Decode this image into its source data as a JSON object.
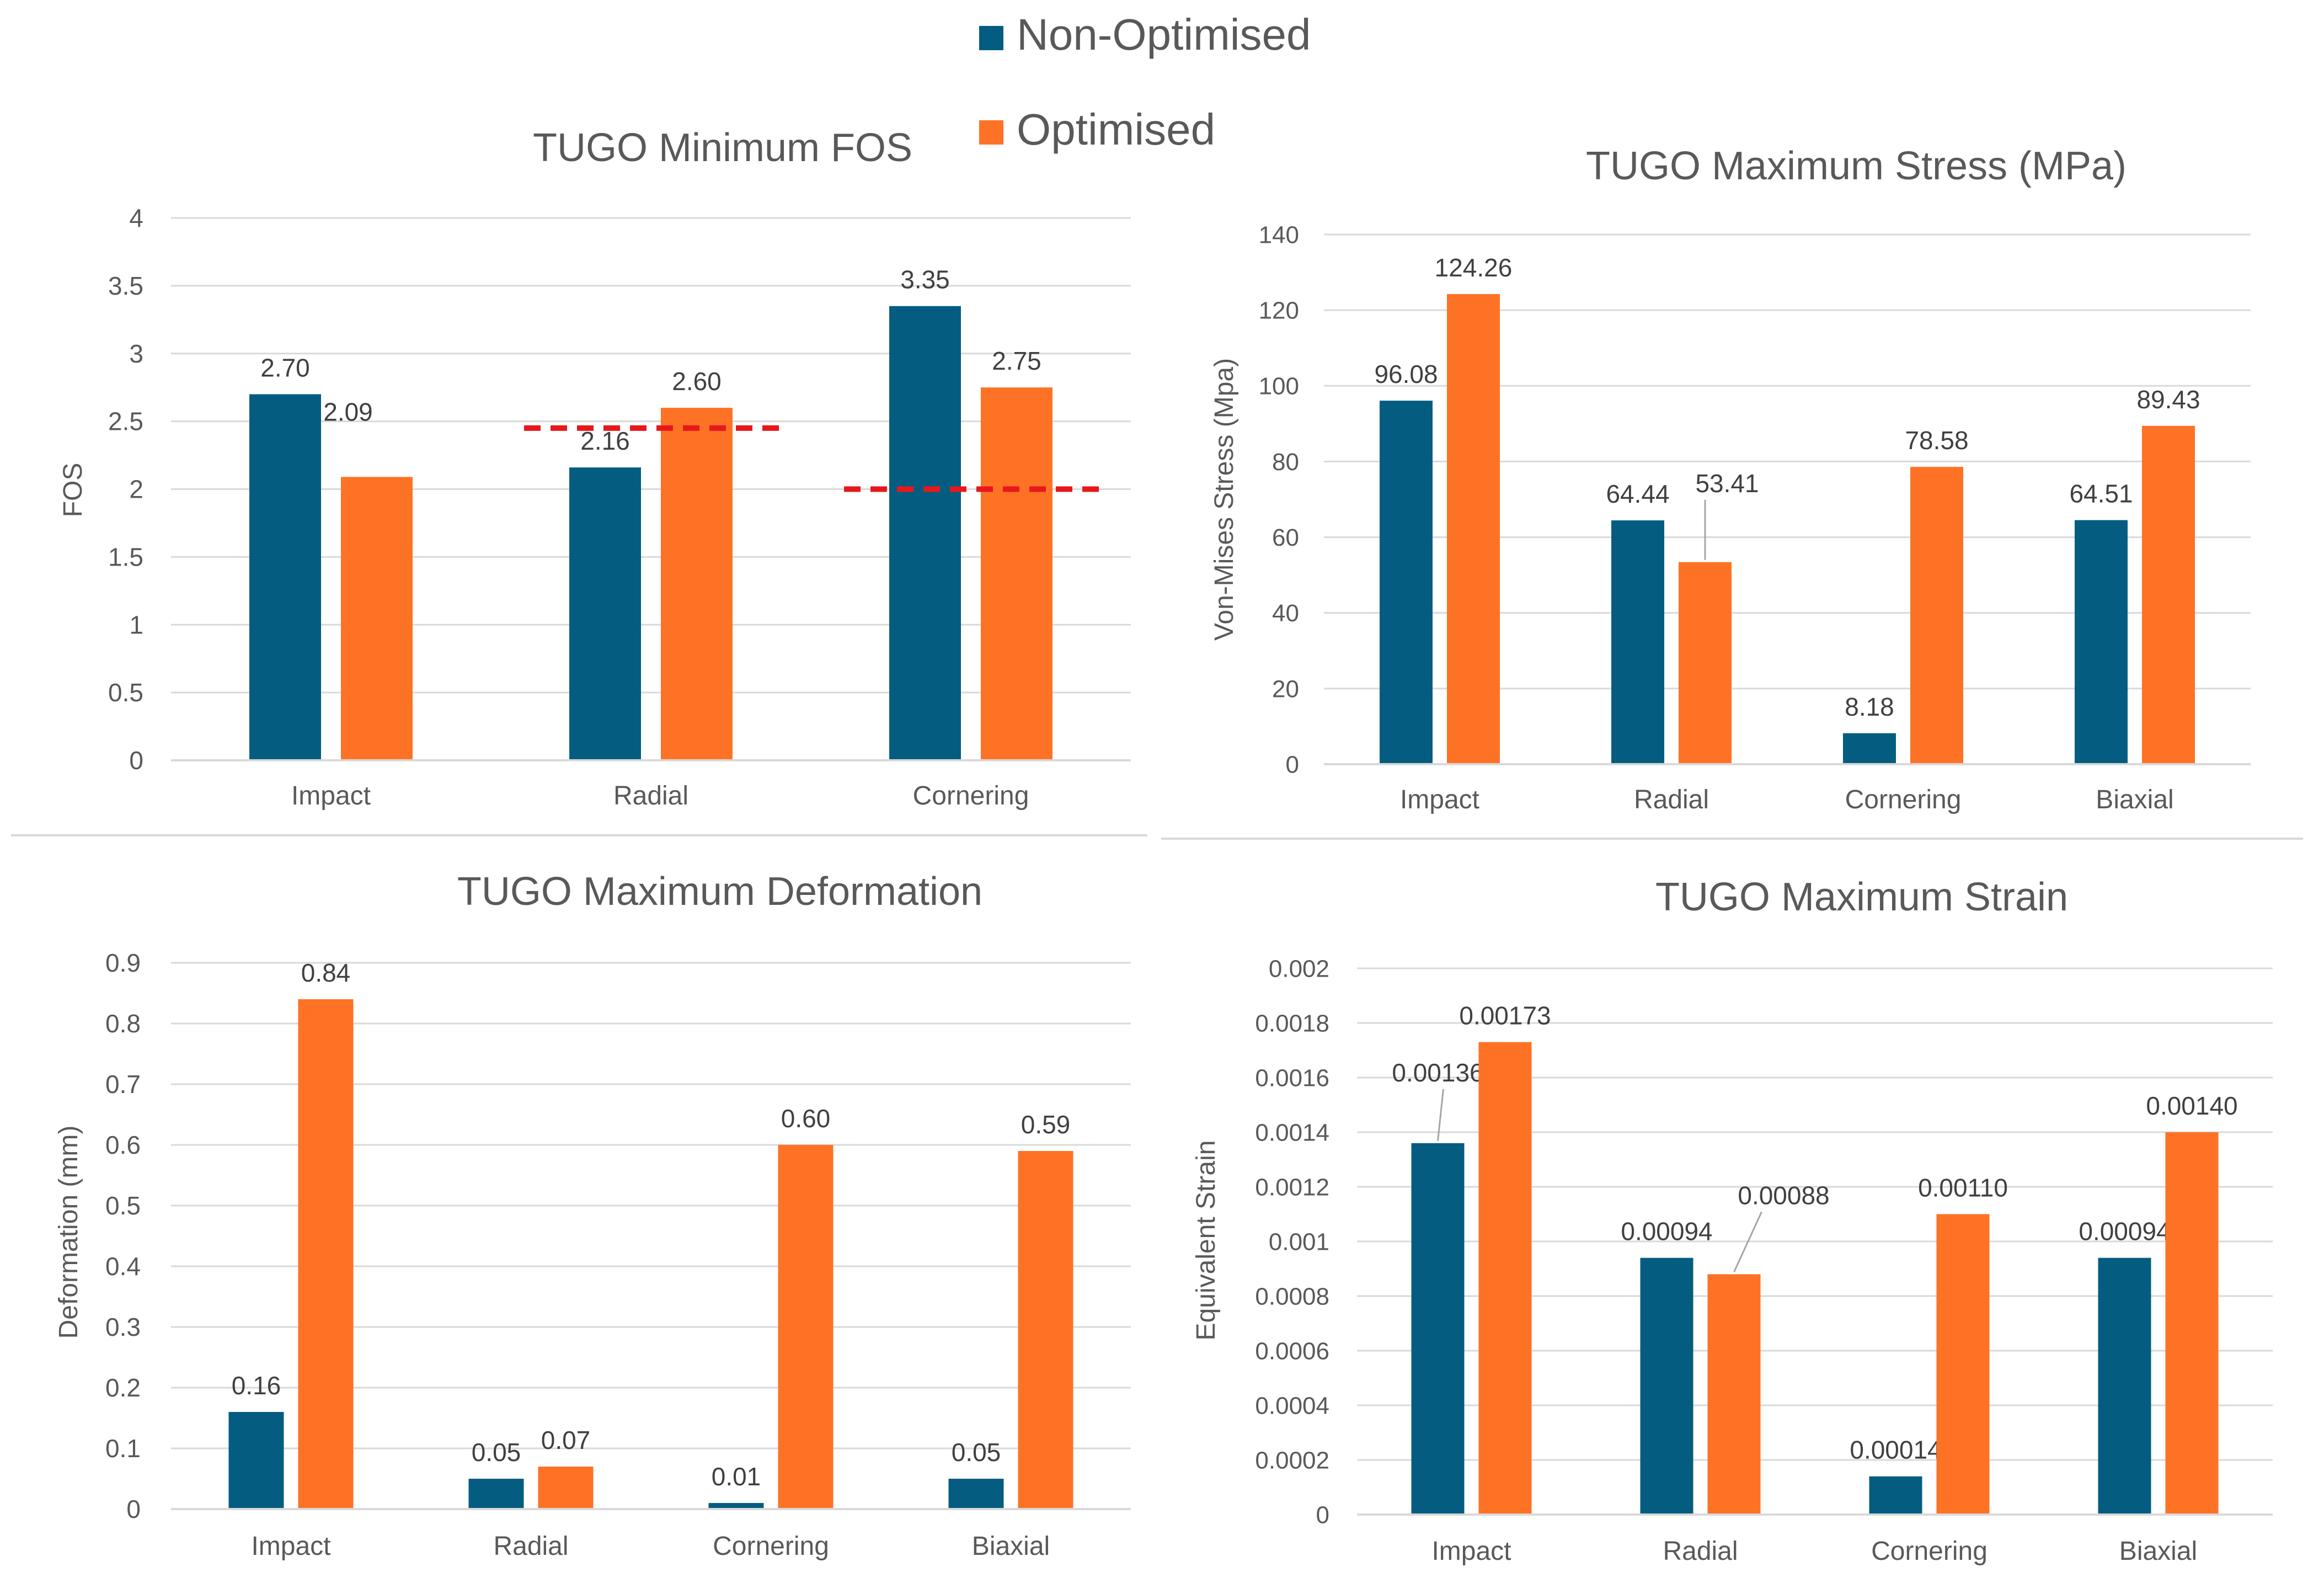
{
  "legend": {
    "items": [
      {
        "label": "Non-Optimised",
        "color": "#045d80"
      },
      {
        "label": "Optimised",
        "color": "#fe7226"
      }
    ]
  },
  "colors": {
    "non_optimised": "#045d80",
    "optimised": "#fe7226",
    "threshold": "#e8171b",
    "grid": "#d9d9d9"
  },
  "chart_data": [
    {
      "id": "fos",
      "type": "bar",
      "title": "TUGO Minimum FOS",
      "xlabel": "",
      "ylabel": "FOS",
      "categories": [
        "Impact",
        "Radial",
        "Cornering"
      ],
      "series": [
        {
          "name": "Non-Optimised",
          "values": [
            2.7,
            2.16,
            3.35
          ],
          "labels": [
            "2.70",
            "2.16",
            "3.35"
          ]
        },
        {
          "name": "Optimised",
          "values": [
            2.09,
            2.6,
            2.75
          ],
          "labels": [
            "2.09",
            "2.60",
            "2.75"
          ]
        }
      ],
      "ylim": [
        0,
        4
      ],
      "yticks": [
        "0",
        "0.5",
        "1",
        "1.5",
        "2",
        "2.5",
        "3",
        "3.5",
        "4"
      ],
      "threshold_lines": [
        {
          "category": "Radial",
          "value": 2.45
        },
        {
          "category": "Cornering",
          "value": 2.0
        }
      ]
    },
    {
      "id": "stress",
      "type": "bar",
      "title": "TUGO Maximum Stress (MPa)",
      "xlabel": "",
      "ylabel": "Von-Mises Stress (Mpa)",
      "categories": [
        "Impact",
        "Radial",
        "Cornering",
        "Biaxial"
      ],
      "series": [
        {
          "name": "Non-Optimised",
          "values": [
            96.08,
            64.44,
            8.18,
            64.51
          ],
          "labels": [
            "96.08",
            "64.44",
            "8.18",
            "64.51"
          ]
        },
        {
          "name": "Optimised",
          "values": [
            124.26,
            53.41,
            78.58,
            89.43
          ],
          "labels": [
            "124.26",
            "53.41",
            "78.58",
            "89.43"
          ]
        }
      ],
      "ylim": [
        0,
        140
      ],
      "yticks": [
        "0",
        "20",
        "40",
        "60",
        "80",
        "100",
        "120",
        "140"
      ]
    },
    {
      "id": "deformation",
      "type": "bar",
      "title": "TUGO Maximum Deformation",
      "xlabel": "",
      "ylabel": "Deformation (mm)",
      "categories": [
        "Impact",
        "Radial",
        "Cornering",
        "Biaxial"
      ],
      "series": [
        {
          "name": "Non-Optimised",
          "values": [
            0.16,
            0.05,
            0.01,
            0.05
          ],
          "labels": [
            "0.16",
            "0.05",
            "0.01",
            "0.05"
          ]
        },
        {
          "name": "Optimised",
          "values": [
            0.84,
            0.07,
            0.6,
            0.59
          ],
          "labels": [
            "0.84",
            "0.07",
            "0.60",
            "0.59"
          ]
        }
      ],
      "ylim": [
        0,
        0.9
      ],
      "yticks": [
        "0",
        "0.1",
        "0.2",
        "0.3",
        "0.4",
        "0.5",
        "0.6",
        "0.7",
        "0.8",
        "0.9"
      ]
    },
    {
      "id": "strain",
      "type": "bar",
      "title": "TUGO Maximum Strain",
      "xlabel": "",
      "ylabel": "Equivalent Strain",
      "categories": [
        "Impact",
        "Radial",
        "Cornering",
        "Biaxial"
      ],
      "series": [
        {
          "name": "Non-Optimised",
          "values": [
            0.00136,
            0.00094,
            0.00014,
            0.00094
          ],
          "labels": [
            "0.00136",
            "0.00094",
            "0.00014",
            "0.00094"
          ]
        },
        {
          "name": "Optimised",
          "values": [
            0.00173,
            0.00088,
            0.0011,
            0.0014
          ],
          "labels": [
            "0.00173",
            "0.00088",
            "0.00110",
            "0.00140"
          ]
        }
      ],
      "ylim": [
        0,
        0.002
      ],
      "yticks": [
        "0",
        "0.0002",
        "0.0004",
        "0.0006",
        "0.0008",
        "0.001",
        "0.0012",
        "0.0014",
        "0.0016",
        "0.0018",
        "0.002"
      ]
    }
  ]
}
